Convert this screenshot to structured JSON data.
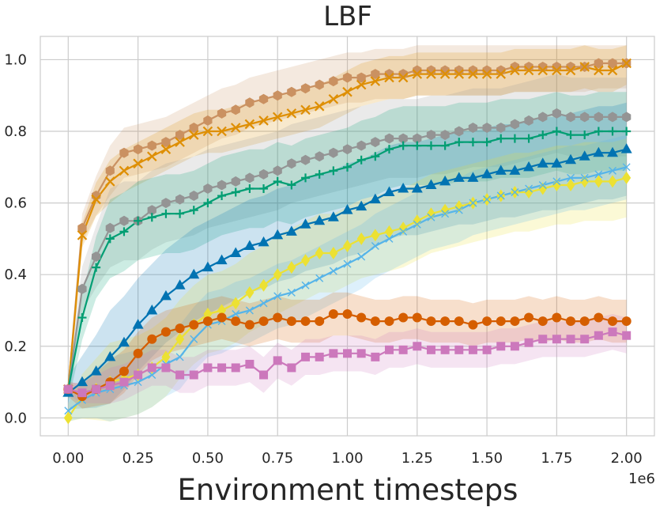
{
  "chart_data": {
    "type": "line",
    "title": "LBF",
    "xlabel": "Environment timesteps",
    "ylabel": "",
    "x_offset_label": "1e6",
    "xlim": [
      -0.1,
      2.1
    ],
    "ylim": [
      -0.05,
      1.065
    ],
    "xticks": [
      0.0,
      0.25,
      0.5,
      0.75,
      1.0,
      1.25,
      1.5,
      1.75,
      2.0
    ],
    "xtick_labels": [
      "0.00",
      "0.25",
      "0.50",
      "0.75",
      "1.00",
      "1.25",
      "1.50",
      "1.75",
      "2.00"
    ],
    "yticks": [
      0.0,
      0.2,
      0.4,
      0.6,
      0.8,
      1.0
    ],
    "ytick_labels": [
      "0.0",
      "0.2",
      "0.4",
      "0.6",
      "0.8",
      "1.0"
    ],
    "grid": true,
    "x": [
      0.0,
      0.05,
      0.1,
      0.15,
      0.2,
      0.25,
      0.3,
      0.35,
      0.4,
      0.45,
      0.5,
      0.55,
      0.6,
      0.65,
      0.7,
      0.75,
      0.8,
      0.85,
      0.9,
      0.95,
      1.0,
      1.05,
      1.1,
      1.15,
      1.2,
      1.25,
      1.3,
      1.35,
      1.4,
      1.45,
      1.5,
      1.55,
      1.6,
      1.65,
      1.7,
      1.75,
      1.8,
      1.85,
      1.9,
      1.95,
      2.0
    ],
    "series": [
      {
        "color": "#ca9161",
        "marker": "hexagon",
        "values": [
          0.08,
          0.53,
          0.62,
          0.69,
          0.74,
          0.75,
          0.76,
          0.77,
          0.79,
          0.81,
          0.83,
          0.85,
          0.86,
          0.88,
          0.89,
          0.9,
          0.91,
          0.92,
          0.93,
          0.94,
          0.95,
          0.95,
          0.96,
          0.96,
          0.96,
          0.97,
          0.97,
          0.97,
          0.97,
          0.97,
          0.97,
          0.97,
          0.98,
          0.98,
          0.98,
          0.98,
          0.98,
          0.98,
          0.99,
          0.99,
          0.99
        ],
        "band": 0.07
      },
      {
        "color": "#de8f05",
        "marker": "x",
        "values": [
          0.08,
          0.51,
          0.61,
          0.66,
          0.69,
          0.71,
          0.73,
          0.75,
          0.77,
          0.79,
          0.8,
          0.8,
          0.81,
          0.82,
          0.83,
          0.84,
          0.85,
          0.86,
          0.87,
          0.89,
          0.91,
          0.93,
          0.94,
          0.95,
          0.95,
          0.96,
          0.96,
          0.96,
          0.96,
          0.96,
          0.96,
          0.96,
          0.97,
          0.97,
          0.97,
          0.97,
          0.97,
          0.98,
          0.97,
          0.97,
          0.99
        ],
        "band": 0.06
      },
      {
        "color": "#949494",
        "marker": "hexagon",
        "values": [
          0.08,
          0.36,
          0.45,
          0.53,
          0.55,
          0.55,
          0.58,
          0.6,
          0.61,
          0.62,
          0.64,
          0.65,
          0.66,
          0.67,
          0.68,
          0.69,
          0.71,
          0.72,
          0.73,
          0.74,
          0.75,
          0.76,
          0.77,
          0.78,
          0.78,
          0.78,
          0.79,
          0.79,
          0.8,
          0.81,
          0.81,
          0.81,
          0.82,
          0.83,
          0.84,
          0.85,
          0.84,
          0.84,
          0.84,
          0.84,
          0.84
        ],
        "band": 0.11
      },
      {
        "color": "#029e73",
        "marker": "plus",
        "values": [
          0.08,
          0.28,
          0.42,
          0.5,
          0.52,
          0.55,
          0.56,
          0.57,
          0.57,
          0.58,
          0.6,
          0.62,
          0.63,
          0.64,
          0.64,
          0.66,
          0.65,
          0.67,
          0.68,
          0.69,
          0.7,
          0.72,
          0.73,
          0.75,
          0.76,
          0.76,
          0.76,
          0.76,
          0.77,
          0.77,
          0.77,
          0.78,
          0.78,
          0.78,
          0.79,
          0.8,
          0.79,
          0.79,
          0.8,
          0.8,
          0.8
        ],
        "band": 0.11
      },
      {
        "color": "#0173b2",
        "marker": "triangle",
        "values": [
          0.07,
          0.1,
          0.13,
          0.17,
          0.21,
          0.26,
          0.3,
          0.34,
          0.37,
          0.4,
          0.42,
          0.44,
          0.46,
          0.48,
          0.49,
          0.51,
          0.52,
          0.54,
          0.55,
          0.56,
          0.58,
          0.59,
          0.61,
          0.63,
          0.64,
          0.64,
          0.65,
          0.66,
          0.67,
          0.67,
          0.68,
          0.69,
          0.69,
          0.7,
          0.71,
          0.71,
          0.72,
          0.73,
          0.74,
          0.74,
          0.75
        ],
        "band": 0.13
      },
      {
        "color": "#ece133",
        "marker": "diamond",
        "values": [
          0.0,
          0.06,
          0.08,
          0.1,
          0.11,
          0.12,
          0.14,
          0.17,
          0.22,
          0.26,
          0.29,
          0.3,
          0.32,
          0.35,
          0.37,
          0.4,
          0.42,
          0.44,
          0.46,
          0.46,
          0.48,
          0.5,
          0.51,
          0.52,
          0.53,
          0.55,
          0.57,
          0.58,
          0.59,
          0.6,
          0.61,
          0.62,
          0.63,
          0.63,
          0.64,
          0.65,
          0.65,
          0.66,
          0.66,
          0.66,
          0.67
        ],
        "band": 0.11
      },
      {
        "color": "#56b4e9",
        "marker": "thin-x",
        "values": [
          0.02,
          0.05,
          0.07,
          0.08,
          0.09,
          0.1,
          0.12,
          0.15,
          0.17,
          0.22,
          0.26,
          0.27,
          0.29,
          0.3,
          0.32,
          0.34,
          0.35,
          0.37,
          0.39,
          0.41,
          0.43,
          0.45,
          0.48,
          0.5,
          0.52,
          0.54,
          0.56,
          0.57,
          0.58,
          0.6,
          0.61,
          0.62,
          0.63,
          0.64,
          0.65,
          0.66,
          0.67,
          0.67,
          0.68,
          0.69,
          0.7
        ],
        "band": 0.09
      },
      {
        "color": "#d55e00",
        "marker": "circle",
        "values": [
          0.08,
          0.06,
          0.08,
          0.1,
          0.13,
          0.18,
          0.22,
          0.24,
          0.25,
          0.26,
          0.27,
          0.28,
          0.27,
          0.26,
          0.27,
          0.28,
          0.27,
          0.27,
          0.27,
          0.29,
          0.29,
          0.28,
          0.27,
          0.27,
          0.28,
          0.28,
          0.27,
          0.27,
          0.27,
          0.26,
          0.27,
          0.27,
          0.27,
          0.28,
          0.27,
          0.28,
          0.27,
          0.27,
          0.28,
          0.27,
          0.27
        ],
        "band": 0.06
      },
      {
        "color": "#cc78bc",
        "marker": "square",
        "values": [
          0.08,
          0.07,
          0.08,
          0.09,
          0.1,
          0.12,
          0.14,
          0.14,
          0.12,
          0.12,
          0.14,
          0.14,
          0.14,
          0.15,
          0.12,
          0.16,
          0.14,
          0.17,
          0.17,
          0.18,
          0.18,
          0.18,
          0.17,
          0.19,
          0.19,
          0.2,
          0.19,
          0.19,
          0.19,
          0.19,
          0.19,
          0.2,
          0.2,
          0.21,
          0.22,
          0.22,
          0.22,
          0.22,
          0.23,
          0.24,
          0.23
        ],
        "band": 0.05
      }
    ]
  }
}
